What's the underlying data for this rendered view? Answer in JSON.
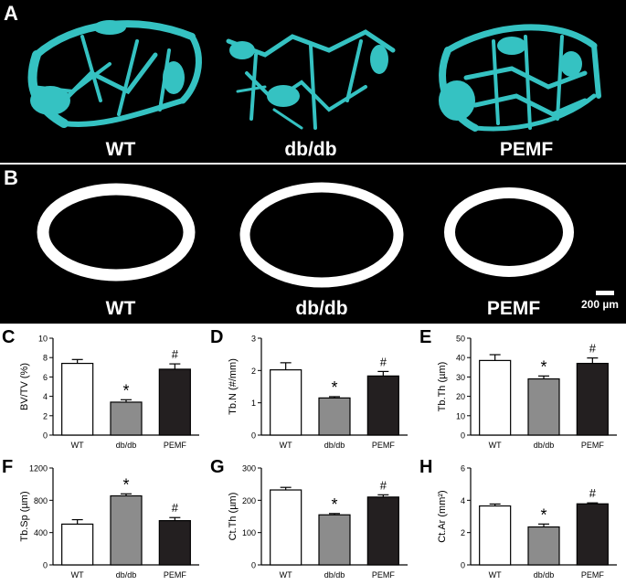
{
  "panels": {
    "a": {
      "letter": "A",
      "groups": [
        "WT",
        "db/db",
        "PEMF"
      ]
    },
    "b": {
      "letter": "B",
      "groups": [
        "WT",
        "db/db",
        "PEMF"
      ],
      "scale_bar": "200 µm"
    }
  },
  "colors": {
    "wt": "#ffffff",
    "dbdb": "#8c8c8c",
    "pemf": "#231f20",
    "trabecular": "#35c2c2"
  },
  "chart_data": [
    {
      "letter": "C",
      "type": "bar",
      "categories": [
        "WT",
        "db/db",
        "PEMF"
      ],
      "values": [
        7.4,
        3.4,
        6.8
      ],
      "errors": [
        0.4,
        0.25,
        0.55
      ],
      "marks": [
        "",
        "*",
        "#"
      ],
      "ylabel": "BV/TV (%)",
      "ylim": [
        0,
        10
      ],
      "yticks": [
        0,
        2,
        4,
        6,
        8,
        10
      ]
    },
    {
      "letter": "D",
      "type": "bar",
      "categories": [
        "WT",
        "db/db",
        "PEMF"
      ],
      "values": [
        2.02,
        1.15,
        1.83
      ],
      "errors": [
        0.22,
        0.04,
        0.14
      ],
      "marks": [
        "",
        "*",
        "#"
      ],
      "ylabel": "Tb.N (#/mm)",
      "ylim": [
        0,
        3
      ],
      "yticks": [
        0,
        1,
        2,
        3
      ]
    },
    {
      "letter": "E",
      "type": "bar",
      "categories": [
        "WT",
        "db/db",
        "PEMF"
      ],
      "values": [
        38.5,
        29,
        37
      ],
      "errors": [
        3,
        1.5,
        2.8
      ],
      "marks": [
        "",
        "*",
        "#"
      ],
      "ylabel": "Tb.Th (µm)",
      "ylim": [
        0,
        50
      ],
      "yticks": [
        0,
        10,
        20,
        30,
        40,
        50
      ]
    },
    {
      "letter": "F",
      "type": "bar",
      "categories": [
        "WT",
        "db/db",
        "PEMF"
      ],
      "values": [
        505,
        855,
        548
      ],
      "errors": [
        55,
        25,
        38
      ],
      "marks": [
        "",
        "*",
        "#"
      ],
      "ylabel": "Tb.Sp (µm)",
      "ylim": [
        0,
        1200
      ],
      "yticks": [
        0,
        400,
        800,
        1200
      ]
    },
    {
      "letter": "G",
      "type": "bar",
      "categories": [
        "WT",
        "db/db",
        "PEMF"
      ],
      "values": [
        232,
        155,
        210
      ],
      "errors": [
        8,
        4,
        7
      ],
      "marks": [
        "",
        "*",
        "#"
      ],
      "ylabel": "Ct.Th (µm)",
      "ylim": [
        0,
        300
      ],
      "yticks": [
        0,
        100,
        200,
        300
      ]
    },
    {
      "letter": "H",
      "type": "bar",
      "categories": [
        "WT",
        "db/db",
        "PEMF"
      ],
      "values": [
        3.65,
        2.35,
        3.78
      ],
      "errors": [
        0.12,
        0.18,
        0.06
      ],
      "marks": [
        "",
        "*",
        "#"
      ],
      "ylabel": "Ct.Ar (mm²)",
      "ylim": [
        0,
        6
      ],
      "yticks": [
        0,
        2,
        4,
        6
      ]
    }
  ]
}
